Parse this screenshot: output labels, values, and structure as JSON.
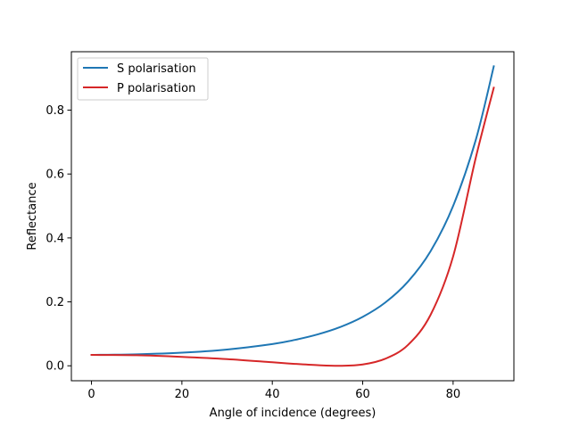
{
  "chart_data": {
    "type": "line",
    "title": "",
    "xlabel": "Angle of incidence (degrees)",
    "ylabel": "Reflectance",
    "xlim": [
      -4.45,
      93.45
    ],
    "ylim": [
      -0.0468,
      0.9827
    ],
    "x_ticks": [
      0,
      20,
      40,
      60,
      80
    ],
    "y_ticks": [
      0.0,
      0.2,
      0.4,
      0.6,
      0.8
    ],
    "x_tick_labels": [
      "0",
      "20",
      "40",
      "60",
      "80"
    ],
    "y_tick_labels": [
      "0.0",
      "0.2",
      "0.4",
      "0.6",
      "0.8"
    ],
    "grid": false,
    "legend_position": "upper-left",
    "series": [
      {
        "name": "S polarisation",
        "color": "#1f77b4",
        "x": [
          0,
          10,
          20,
          30,
          40,
          45,
          50,
          55,
          60,
          65,
          70,
          75,
          80,
          85,
          89
        ],
        "y": [
          0.034,
          0.036,
          0.041,
          0.051,
          0.068,
          0.081,
          0.098,
          0.121,
          0.153,
          0.198,
          0.263,
          0.358,
          0.5,
          0.706,
          0.937
        ]
      },
      {
        "name": "P polarisation",
        "color": "#d62728",
        "x": [
          0,
          10,
          20,
          30,
          40,
          45,
          50,
          55,
          60,
          65,
          70,
          75,
          80,
          85,
          89
        ],
        "y": [
          0.034,
          0.033,
          0.028,
          0.021,
          0.011,
          0.006,
          0.002,
          0.0,
          0.004,
          0.022,
          0.065,
          0.159,
          0.342,
          0.65,
          0.87
        ]
      }
    ]
  }
}
